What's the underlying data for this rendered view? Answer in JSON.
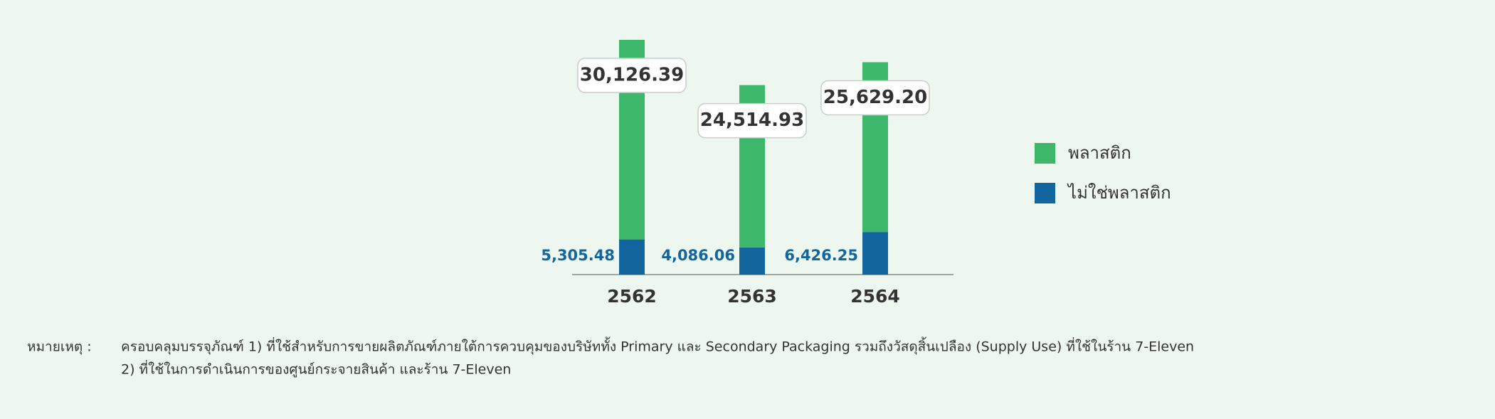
{
  "chart_data": {
    "type": "stacked_bar",
    "categories": [
      "2562",
      "2563",
      "2564"
    ],
    "series": [
      {
        "name": "พลาสติก",
        "color": "#3db86a",
        "values": [
          30126.39,
          24514.93,
          25629.2
        ],
        "value_labels": [
          "30,126.39",
          "24,514.93",
          "25,629.20"
        ]
      },
      {
        "name": "ไม่ใช่พลาสติก",
        "color": "#13659e",
        "values": [
          5305.48,
          4086.06,
          6426.25
        ],
        "value_labels": [
          "5,305.48",
          "4,086.06",
          "6,426.25"
        ]
      }
    ],
    "notes": {
      "label": "หมายเหตุ :",
      "lines": [
        "ครอบคลุมบรรจุภัณฑ์  1) ที่ใช้สำหรับการขายผลิตภัณฑ์ภายใต้การควบคุมของบริษัททั้ง Primary และ Secondary Packaging รวมถึงวัสดุสิ้นเปลือง (Supply Use) ที่ใช้ในร้าน 7-Eleven",
        "2) ที่ใช้ในการดำเนินการของศูนย์กระจายสินค้า และร้าน 7-Eleven"
      ]
    }
  }
}
